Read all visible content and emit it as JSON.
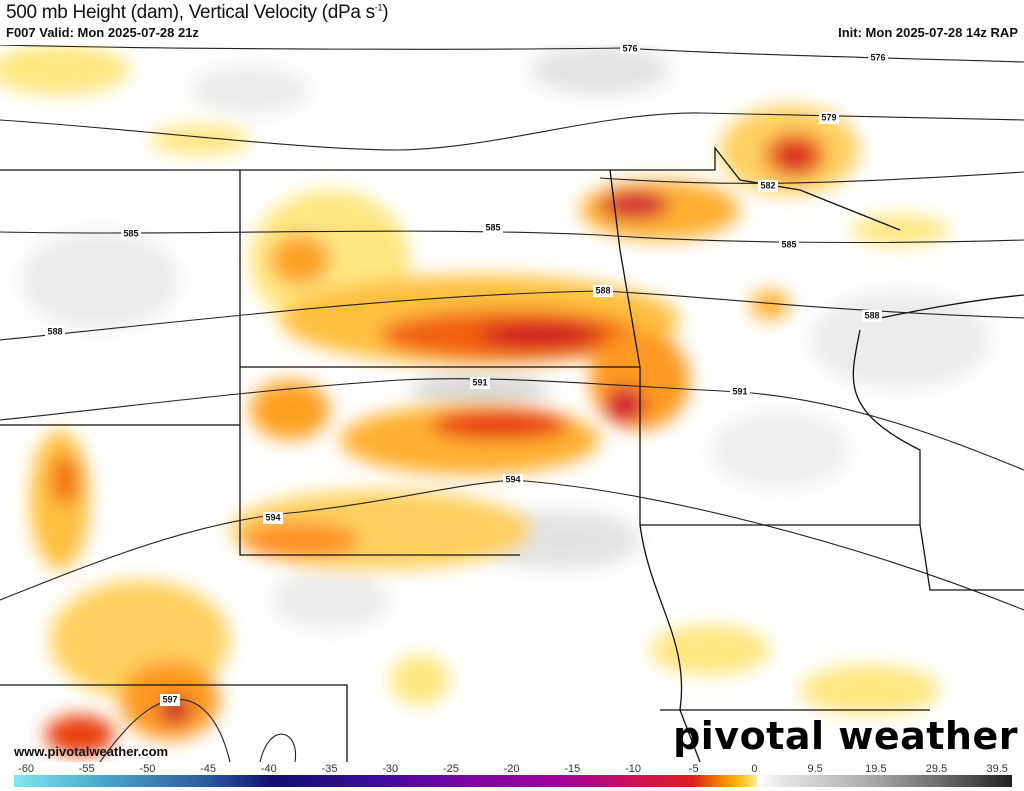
{
  "header": {
    "title": "500 mb Height (dam), Vertical Velocity (dPa s",
    "title_sup": "-1",
    "title_end": ")",
    "valid": "F007 Valid: Mon 2025-07-28 21z",
    "init": "Init: Mon 2025-07-28 14z RAP"
  },
  "contours": [
    {
      "value": "576",
      "labels": [
        "576",
        "576"
      ]
    },
    {
      "value": "579",
      "labels": [
        "579"
      ]
    },
    {
      "value": "582",
      "labels": [
        "582"
      ]
    },
    {
      "value": "585",
      "labels": [
        "585",
        "585",
        "585"
      ]
    },
    {
      "value": "588",
      "labels": [
        "588",
        "588",
        "588"
      ]
    },
    {
      "value": "591",
      "labels": [
        "591",
        "591"
      ]
    },
    {
      "value": "594",
      "labels": [
        "594",
        "594"
      ]
    },
    {
      "value": "597",
      "labels": [
        "597"
      ]
    }
  ],
  "watermark": "www.pivotalweather.com",
  "logo": "pivotal weather",
  "colorbar": {
    "ticks": [
      "-60",
      "-55",
      "-50",
      "-45",
      "-40",
      "-35",
      "-30",
      "-25",
      "-20",
      "-15",
      "-10",
      "-5",
      "0",
      "9.5",
      "19.5",
      "29.5",
      "39.5"
    ],
    "colors": {
      "min": "#80e6ee",
      "neg40": "#111070",
      "neg20": "#a6009a",
      "neg10": "#dd1e22",
      "neg5": "#ee6a00",
      "zero": "#ffffff",
      "max": "#222222"
    }
  }
}
